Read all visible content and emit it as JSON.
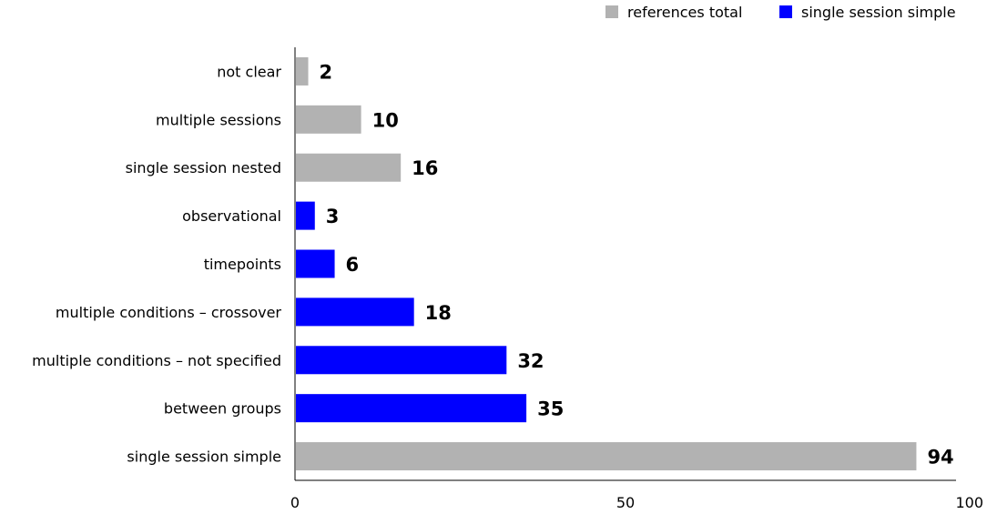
{
  "chart_data": {
    "type": "bar",
    "orientation": "horizontal",
    "categories": [
      "not clear",
      "multiple sessions",
      "single session nested",
      "observational",
      "timepoints",
      "multiple conditions – crossover",
      "multiple conditions – not specified",
      "between groups",
      "single session simple"
    ],
    "values": [
      2,
      10,
      16,
      3,
      6,
      18,
      32,
      35,
      94
    ],
    "value_labels": [
      "2",
      "10",
      "16",
      "3",
      "6",
      "18",
      "32",
      "35",
      "94"
    ],
    "bar_series": [
      "references total",
      "references total",
      "references total",
      "single session simple",
      "single session simple",
      "single session simple",
      "single session simple",
      "single session simple",
      "references total"
    ],
    "legend": [
      {
        "name": "references total",
        "color": "#b2b2b2"
      },
      {
        "name": "single session simple",
        "color": "#0000ff"
      }
    ],
    "legend_position": "top-right",
    "xlim": [
      0,
      100
    ],
    "xticks": [
      0,
      50,
      100
    ],
    "xtick_labels": [
      "0",
      "50",
      "100"
    ],
    "grid": false
  }
}
